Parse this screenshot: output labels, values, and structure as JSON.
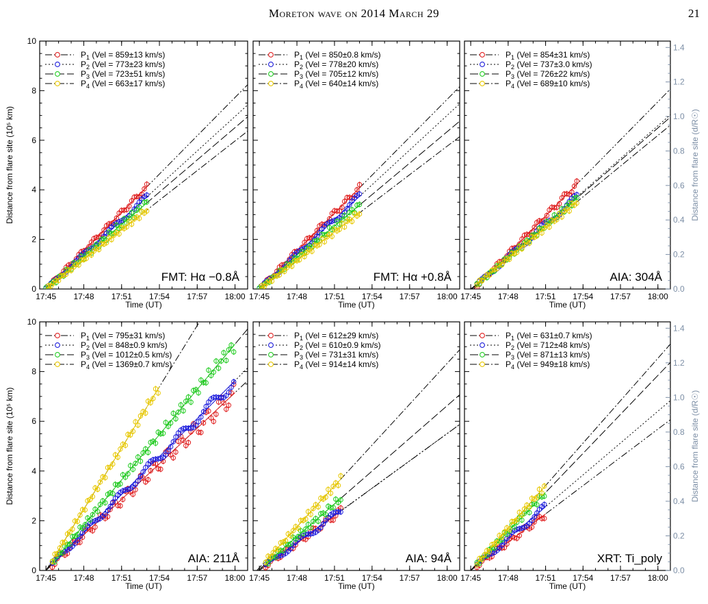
{
  "page": {
    "running_title": "Moreton wave on 2014 March 29",
    "page_number": "21"
  },
  "figure": {
    "left_axis_label": "Distance from flare site (10⁵ km)",
    "right_axis_label": "Distance from flare site (d/R☉)",
    "x_axis_label": "Time (UT)",
    "right_axis_color": "#7d8fa6",
    "series_colors": {
      "P1": "#e02020",
      "P2": "#1c1cdc",
      "P3": "#22cc22",
      "P4": "#e8c800"
    }
  },
  "chart_data": [
    {
      "type": "scatter",
      "panel_label": "FMT: Hα −0.8Å",
      "xlabel": "Time (UT)",
      "ylabel": "Distance from flare site (10⁵ km)",
      "x_ticks": [
        "17:45",
        "17:48",
        "17:51",
        "17:54",
        "17:57",
        "18:00"
      ],
      "y_ticks": [
        "0",
        "2",
        "4",
        "6",
        "8",
        "10"
      ],
      "xlim": [
        "17:44:30",
        "18:01:00"
      ],
      "ylim": [
        0,
        10
      ],
      "legend": [
        {
          "label": "P",
          "sub": "1",
          "vel": " (Vel = 859±13 km/s)"
        },
        {
          "label": "P",
          "sub": "2",
          "vel": " (Vel = 773±23 km/s)"
        },
        {
          "label": "P",
          "sub": "3",
          "vel": " (Vel = 723±51 km/s)"
        },
        {
          "label": "P",
          "sub": "4",
          "vel": " (Vel = 663±17 km/s)"
        }
      ],
      "legend_placement": "top-left",
      "series": [
        {
          "name": "P1",
          "start": "17:45:00",
          "end": "17:53:00",
          "slope": 0.515,
          "t0": 0.0,
          "offset": 0.0,
          "noise": 0.05
        },
        {
          "name": "P2",
          "start": "17:45:00",
          "end": "17:53:00",
          "slope": 0.464,
          "t0": 0.0,
          "offset": 0.0,
          "noise": 0.05
        },
        {
          "name": "P3",
          "start": "17:45:00",
          "end": "17:53:00",
          "slope": 0.434,
          "t0": 0.0,
          "offset": 0.0,
          "noise": 0.08
        },
        {
          "name": "P4",
          "start": "17:45:00",
          "end": "17:53:00",
          "slope": 0.398,
          "t0": 0.0,
          "offset": 0.0,
          "noise": 0.05
        }
      ]
    },
    {
      "type": "scatter",
      "panel_label": "FMT: Hα +0.8Å",
      "xlabel": "Time (UT)",
      "ylabel": "",
      "x_ticks": [
        "17:45",
        "17:48",
        "17:51",
        "17:54",
        "17:57",
        "18:00"
      ],
      "y_ticks": [],
      "xlim": [
        "17:44:30",
        "18:01:00"
      ],
      "ylim": [
        0,
        10
      ],
      "legend": [
        {
          "label": "P",
          "sub": "1",
          "vel": " (Vel = 850±0.8 km/s)"
        },
        {
          "label": "P",
          "sub": "2",
          "vel": " (Vel = 778±20 km/s)"
        },
        {
          "label": "P",
          "sub": "3",
          "vel": " (Vel = 705±12 km/s)"
        },
        {
          "label": "P",
          "sub": "4",
          "vel": " (Vel = 640±14 km/s)"
        }
      ],
      "legend_placement": "top-left",
      "series": [
        {
          "name": "P1",
          "start": "17:45:00",
          "end": "17:53:00",
          "slope": 0.51,
          "t0": 0.0,
          "offset": 0.0,
          "noise": 0.06
        },
        {
          "name": "P2",
          "start": "17:45:00",
          "end": "17:53:00",
          "slope": 0.467,
          "t0": 0.0,
          "offset": 0.0,
          "noise": 0.06
        },
        {
          "name": "P3",
          "start": "17:45:00",
          "end": "17:53:00",
          "slope": 0.423,
          "t0": 0.0,
          "offset": 0.0,
          "noise": 0.06
        },
        {
          "name": "P4",
          "start": "17:45:00",
          "end": "17:53:00",
          "slope": 0.384,
          "t0": 0.0,
          "offset": 0.0,
          "noise": 0.06
        }
      ]
    },
    {
      "type": "scatter",
      "panel_label": "AIA: 304Å",
      "xlabel": "Time (UT)",
      "ylabel": "Distance from flare site (d/R☉)",
      "x_ticks": [
        "17:45",
        "17:48",
        "17:51",
        "17:54",
        "17:57",
        "18:00"
      ],
      "y_ticks": [],
      "right_ticks": [
        "0.0",
        "0.2",
        "0.4",
        "0.6",
        "0.8",
        "1.0",
        "1.2",
        "1.4"
      ],
      "xlim": [
        "17:44:30",
        "18:01:00"
      ],
      "ylim": [
        0,
        10
      ],
      "legend": [
        {
          "label": "P",
          "sub": "1",
          "vel": " (Vel = 854±31 km/s)"
        },
        {
          "label": "P",
          "sub": "2",
          "vel": " (Vel = 737±3.0 km/s)"
        },
        {
          "label": "P",
          "sub": "3",
          "vel": " (Vel = 726±22 km/s)"
        },
        {
          "label": "P",
          "sub": "4",
          "vel": " (Vel = 689±10 km/s)"
        }
      ],
      "legend_placement": "top-left",
      "series": [
        {
          "name": "P1",
          "start": "17:45:30",
          "end": "17:53:30",
          "slope": 0.512,
          "t0": 0.5,
          "offset": 0.0,
          "noise": 0.06
        },
        {
          "name": "P2",
          "start": "17:45:30",
          "end": "17:53:30",
          "slope": 0.442,
          "t0": 0.2,
          "offset": 0.0,
          "noise": 0.06
        },
        {
          "name": "P3",
          "start": "17:45:30",
          "end": "17:53:30",
          "slope": 0.436,
          "t0": 0.2,
          "offset": 0.0,
          "noise": 0.06
        },
        {
          "name": "P4",
          "start": "17:45:30",
          "end": "17:53:30",
          "slope": 0.413,
          "t0": 0.0,
          "offset": 0.0,
          "noise": 0.06
        }
      ]
    },
    {
      "type": "scatter",
      "panel_label": "AIA: 211Å",
      "xlabel": "Time (UT)",
      "ylabel": "Distance from flare site (10⁵ km)",
      "x_ticks": [
        "17:45",
        "17:48",
        "17:51",
        "17:54",
        "17:57",
        "18:00"
      ],
      "y_ticks": [
        "0",
        "2",
        "4",
        "6",
        "8",
        "10"
      ],
      "xlim": [
        "17:44:30",
        "18:01:00"
      ],
      "ylim": [
        0,
        10
      ],
      "legend": [
        {
          "label": "P",
          "sub": "1",
          "vel": " (Vel = 795±31 km/s)"
        },
        {
          "label": "P",
          "sub": "2",
          "vel": " (Vel = 848±0.9 km/s)"
        },
        {
          "label": "P",
          "sub": "3",
          "vel": " (Vel = 1012±0.5 km/s)"
        },
        {
          "label": "P",
          "sub": "4",
          "vel": " (Vel = 1369±0.7 km/s)"
        }
      ],
      "legend_placement": "top-left",
      "series": [
        {
          "name": "P1",
          "start": "17:45:30",
          "end": "18:00:00",
          "slope": 0.477,
          "t0": 0.0,
          "offset": 0.0,
          "noise": 0.12
        },
        {
          "name": "P2",
          "start": "17:45:30",
          "end": "18:00:00",
          "slope": 0.509,
          "t0": 0.0,
          "offset": 0.0,
          "noise": 0.08
        },
        {
          "name": "P3",
          "start": "17:45:30",
          "end": "18:00:00",
          "slope": 0.607,
          "t0": 0.0,
          "offset": 0.0,
          "noise": 0.08
        },
        {
          "name": "P4",
          "start": "17:45:30",
          "end": "17:54:00",
          "slope": 0.821,
          "t0": 0.0,
          "offset": 0.0,
          "noise": 0.08
        }
      ]
    },
    {
      "type": "scatter",
      "panel_label": "AIA: 94Å",
      "xlabel": "Time (UT)",
      "ylabel": "",
      "x_ticks": [
        "17:45",
        "17:48",
        "17:51",
        "17:54",
        "17:57",
        "18:00"
      ],
      "y_ticks": [],
      "xlim": [
        "17:44:30",
        "18:01:00"
      ],
      "ylim": [
        0,
        10
      ],
      "legend": [
        {
          "label": "P",
          "sub": "1",
          "vel": " (Vel = 612±29 km/s)"
        },
        {
          "label": "P",
          "sub": "2",
          "vel": " (Vel = 610±0.9 km/s)"
        },
        {
          "label": "P",
          "sub": "3",
          "vel": " (Vel = 731±31 km/s)"
        },
        {
          "label": "P",
          "sub": "4",
          "vel": " (Vel = 914±14 km/s)"
        }
      ],
      "legend_placement": "top-left",
      "series": [
        {
          "name": "P1",
          "start": "17:45:30",
          "end": "17:51:30",
          "slope": 0.367,
          "t0": 0.0,
          "offset": 0.0,
          "noise": 0.08
        },
        {
          "name": "P2",
          "start": "17:45:30",
          "end": "17:51:30",
          "slope": 0.366,
          "t0": -0.1,
          "offset": 0.0,
          "noise": 0.08
        },
        {
          "name": "P3",
          "start": "17:45:30",
          "end": "17:51:30",
          "slope": 0.439,
          "t0": -0.2,
          "offset": 0.0,
          "noise": 0.08
        },
        {
          "name": "P4",
          "start": "17:45:30",
          "end": "17:51:30",
          "slope": 0.548,
          "t0": -0.4,
          "offset": 0.0,
          "noise": 0.08
        }
      ]
    },
    {
      "type": "scatter",
      "panel_label": "XRT: Ti_poly",
      "xlabel": "Time (UT)",
      "ylabel": "Distance from flare site (d/R☉)",
      "x_ticks": [
        "17:45",
        "17:48",
        "17:51",
        "17:54",
        "17:57",
        "18:00"
      ],
      "y_ticks": [],
      "right_ticks": [
        "0.0",
        "0.2",
        "0.4",
        "0.6",
        "0.8",
        "1.0",
        "1.2",
        "1.4"
      ],
      "xlim": [
        "17:44:30",
        "18:01:00"
      ],
      "ylim": [
        0,
        10
      ],
      "legend": [
        {
          "label": "P",
          "sub": "1",
          "vel": " (Vel = 631±0.7 km/s)"
        },
        {
          "label": "P",
          "sub": "2",
          "vel": " (Vel = 712±48 km/s)"
        },
        {
          "label": "P",
          "sub": "3",
          "vel": " (Vel = 871±13 km/s)"
        },
        {
          "label": "P",
          "sub": "4",
          "vel": " (Vel = 949±18 km/s)"
        }
      ],
      "legend_placement": "top-left",
      "series": [
        {
          "name": "P1",
          "start": "17:45:30",
          "end": "17:51:00",
          "slope": 0.379,
          "t0": 0.0,
          "offset": 0.0,
          "noise": 0.08
        },
        {
          "name": "P2",
          "start": "17:45:30",
          "end": "17:51:00",
          "slope": 0.427,
          "t0": 0.0,
          "offset": 0.0,
          "noise": 0.08
        },
        {
          "name": "P3",
          "start": "17:45:30",
          "end": "17:51:00",
          "slope": 0.523,
          "t0": 0.0,
          "offset": 0.0,
          "noise": 0.08
        },
        {
          "name": "P4",
          "start": "17:45:30",
          "end": "17:51:00",
          "slope": 0.569,
          "t0": 0.0,
          "offset": 0.0,
          "noise": 0.08
        }
      ]
    }
  ]
}
